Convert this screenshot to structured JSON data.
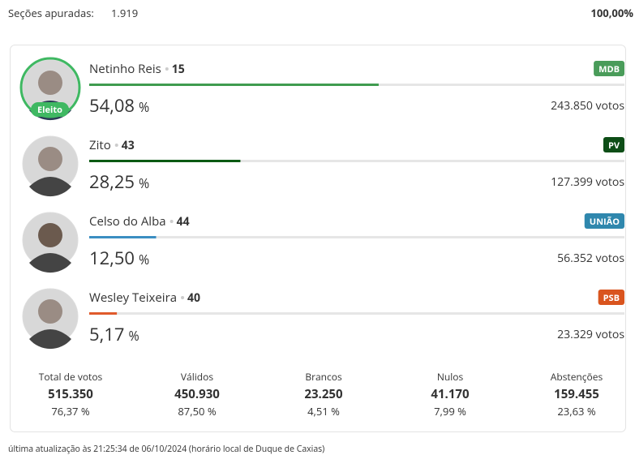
{
  "header": {
    "sections_label": "Seções apuradas:",
    "sections_value": "1.919",
    "sections_percent": "100,00%"
  },
  "percent_sign": "%",
  "bar_scale": {
    "xlim": [
      0,
      100
    ]
  },
  "elected_badge": "Eleito",
  "candidates": [
    {
      "name": "Netinho Reis",
      "number": "15",
      "party": "MDB",
      "color": "#3f9b4f",
      "party_color": "#4a9c5a",
      "percent": {
        "value": 54.08,
        "label": "54,08"
      },
      "votes": "243.850 votos"
    },
    {
      "name": "Zito",
      "number": "43",
      "party": "PV",
      "color": "#0b5a13",
      "party_color": "#0d4d16",
      "percent": {
        "value": 28.25,
        "label": "28,25"
      },
      "votes": "127.399 votos"
    },
    {
      "name": "Celso do Alba",
      "number": "44",
      "party": "UNIÃO",
      "color": "#3b8ec2",
      "party_color": "#2f87ad",
      "percent": {
        "value": 12.5,
        "label": "12,50"
      },
      "votes": "56.352 votos"
    },
    {
      "name": "Wesley Teixeira",
      "number": "40",
      "party": "PSB",
      "color": "#e05a2b",
      "party_color": "#d9541e",
      "percent": {
        "value": 5.17,
        "label": "5,17"
      },
      "votes": "23.329 votos"
    }
  ],
  "totals": [
    {
      "label": "Total de votos",
      "value": "515.350",
      "percent": "76,37 %"
    },
    {
      "label": "Válidos",
      "value": "450.930",
      "percent": "87,50 %"
    },
    {
      "label": "Brancos",
      "value": "23.250",
      "percent": "4,51 %"
    },
    {
      "label": "Nulos",
      "value": "41.170",
      "percent": "7,99 %"
    },
    {
      "label": "Abstenções",
      "value": "159.455",
      "percent": "23,63 %"
    }
  ],
  "footer": "última atualização às 21:25:34 de 06/10/2024 (horário local de Duque de Caxias)"
}
